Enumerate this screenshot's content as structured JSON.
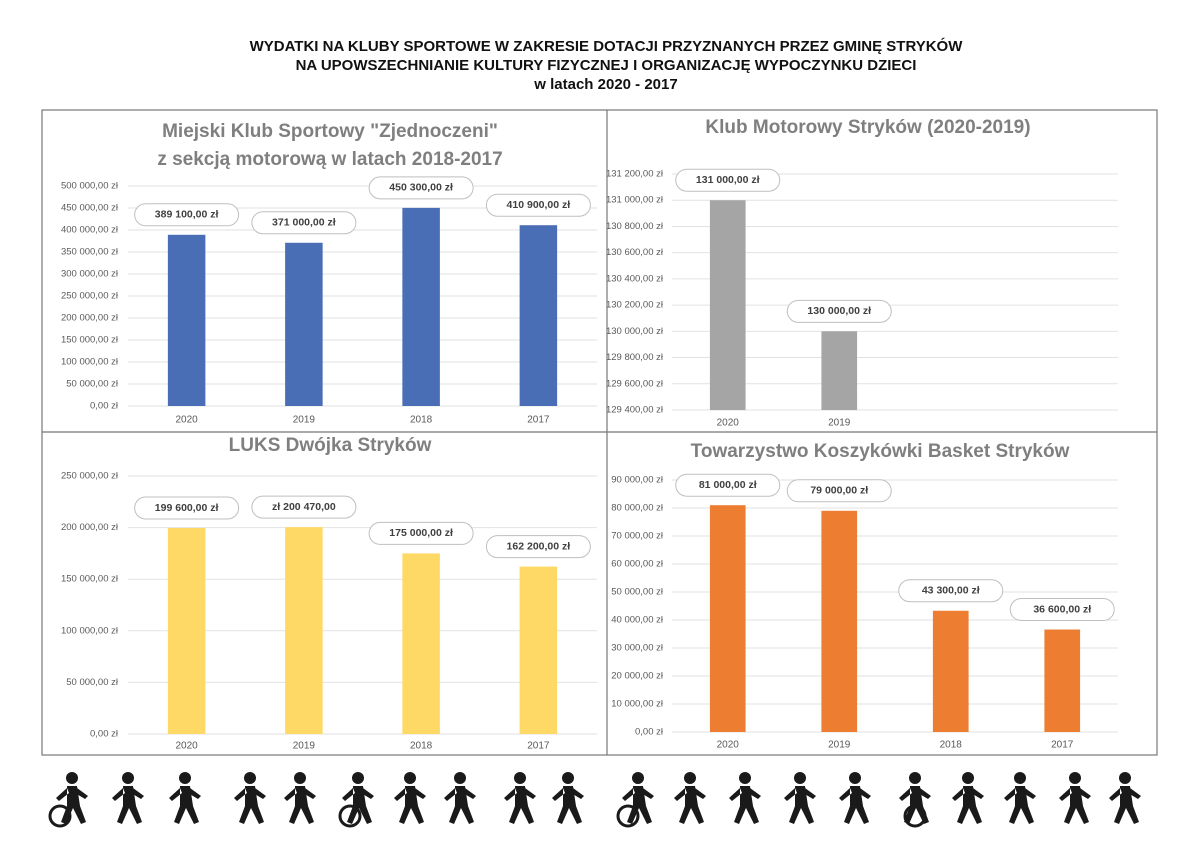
{
  "title": [
    "WYDATKI NA KLUBY SPORTOWE W ZAKRESIE DOTACJI PRZYZNANYCH PRZEZ GMINĘ STRYKÓW",
    "NA UPOWSZECHNIANIE KULTURY FIZYCZNEJ I ORGANIZACJĘ WYPOCZYNKU DZIECI",
    "w latach 2020 - 2017"
  ],
  "chart_data": [
    {
      "type": "bar",
      "title": [
        "Miejski Klub Sportowy \"Zjednoczeni\"",
        "z sekcją motorową w latach 2018-2017"
      ],
      "categories": [
        "2020",
        "2019",
        "2018",
        "2017"
      ],
      "values": [
        389100,
        371000,
        450300,
        410900
      ],
      "value_labels": [
        "389 100,00 zł",
        "371 000,00 zł",
        "450 300,00 zł",
        "410 900,00 zł"
      ],
      "color": "#4a6eb5",
      "ylim": [
        0,
        500000
      ],
      "grid": true,
      "yticks": [
        {
          "value": 0,
          "label": "0,00 zł"
        },
        {
          "value": 50000,
          "label": "50 000,00 zł"
        },
        {
          "value": 100000,
          "label": "100 000,00 zł"
        },
        {
          "value": 150000,
          "label": "150 000,00 zł"
        },
        {
          "value": 200000,
          "label": "200 000,00 zł"
        },
        {
          "value": 250000,
          "label": "250 000,00 zł"
        },
        {
          "value": 300000,
          "label": "300 000,00 zł"
        },
        {
          "value": 350000,
          "label": "350 000,00 zł"
        },
        {
          "value": 400000,
          "label": "400 000,00 zł"
        },
        {
          "value": 450000,
          "label": "450 000,00 zł"
        },
        {
          "value": 500000,
          "label": "500 000,00 zł"
        }
      ]
    },
    {
      "type": "bar",
      "title": [
        "Klub Motorowy Stryków (2020-2019)"
      ],
      "categories": [
        "2020",
        "2019",
        null,
        null
      ],
      "values": [
        131000,
        130000,
        null,
        null
      ],
      "value_labels": [
        "131 000,00 zł",
        "130 000,00 zł",
        null,
        null
      ],
      "color": "#a5a5a5",
      "ylim": [
        129400,
        131200
      ],
      "grid": true,
      "yticks": [
        {
          "value": 129400,
          "label": "129 400,00 zł"
        },
        {
          "value": 129600,
          "label": "129 600,00 zł"
        },
        {
          "value": 129800,
          "label": "129 800,00 zł"
        },
        {
          "value": 130000,
          "label": "130 000,00 zł"
        },
        {
          "value": 130200,
          "label": "130 200,00 zł"
        },
        {
          "value": 130400,
          "label": "130 400,00 zł"
        },
        {
          "value": 130600,
          "label": "130 600,00 zł"
        },
        {
          "value": 130800,
          "label": "130 800,00 zł"
        },
        {
          "value": 131000,
          "label": "131 000,00 zł"
        },
        {
          "value": 131200,
          "label": "131 200,00 zł"
        }
      ]
    },
    {
      "type": "bar",
      "title": [
        "LUKS Dwójka Stryków"
      ],
      "categories": [
        "2020",
        "2019",
        "2018",
        "2017"
      ],
      "values": [
        199600,
        200470,
        175000,
        162200
      ],
      "value_labels": [
        "199 600,00 zł",
        "zł 200 470,00",
        "175 000,00 zł",
        "162 200,00 zł"
      ],
      "color": "#ffd966",
      "ylim": [
        0,
        250000
      ],
      "grid": true,
      "yticks": [
        {
          "value": 0,
          "label": "0,00 zł"
        },
        {
          "value": 50000,
          "label": "50 000,00 zł"
        },
        {
          "value": 100000,
          "label": "100 000,00 zł"
        },
        {
          "value": 150000,
          "label": "150 000,00 zł"
        },
        {
          "value": 200000,
          "label": "200 000,00 zł"
        },
        {
          "value": 250000,
          "label": "250 000,00 zł"
        }
      ]
    },
    {
      "type": "bar",
      "title": [
        "Towarzystwo Koszykówki Basket Stryków"
      ],
      "categories": [
        "2020",
        "2019",
        "2018",
        "2017"
      ],
      "values": [
        81000,
        79000,
        43300,
        36600
      ],
      "value_labels": [
        "81 000,00 zł",
        "79 000,00 zł",
        "43 300,00 zł",
        "36 600,00 zł"
      ],
      "color": "#ed7d31",
      "ylim": [
        0,
        90000
      ],
      "grid": true,
      "yticks": [
        {
          "value": 0,
          "label": "0,00 zł"
        },
        {
          "value": 10000,
          "label": "10 000,00 zł"
        },
        {
          "value": 20000,
          "label": "20 000,00 zł"
        },
        {
          "value": 30000,
          "label": "30 000,00 zł"
        },
        {
          "value": 40000,
          "label": "40 000,00 zł"
        },
        {
          "value": 50000,
          "label": "50 000,00 zł"
        },
        {
          "value": 60000,
          "label": "60 000,00 zł"
        },
        {
          "value": 70000,
          "label": "70 000,00 zł"
        },
        {
          "value": 80000,
          "label": "80 000,00 zł"
        },
        {
          "value": 90000,
          "label": "90 000,00 zł"
        }
      ]
    }
  ]
}
